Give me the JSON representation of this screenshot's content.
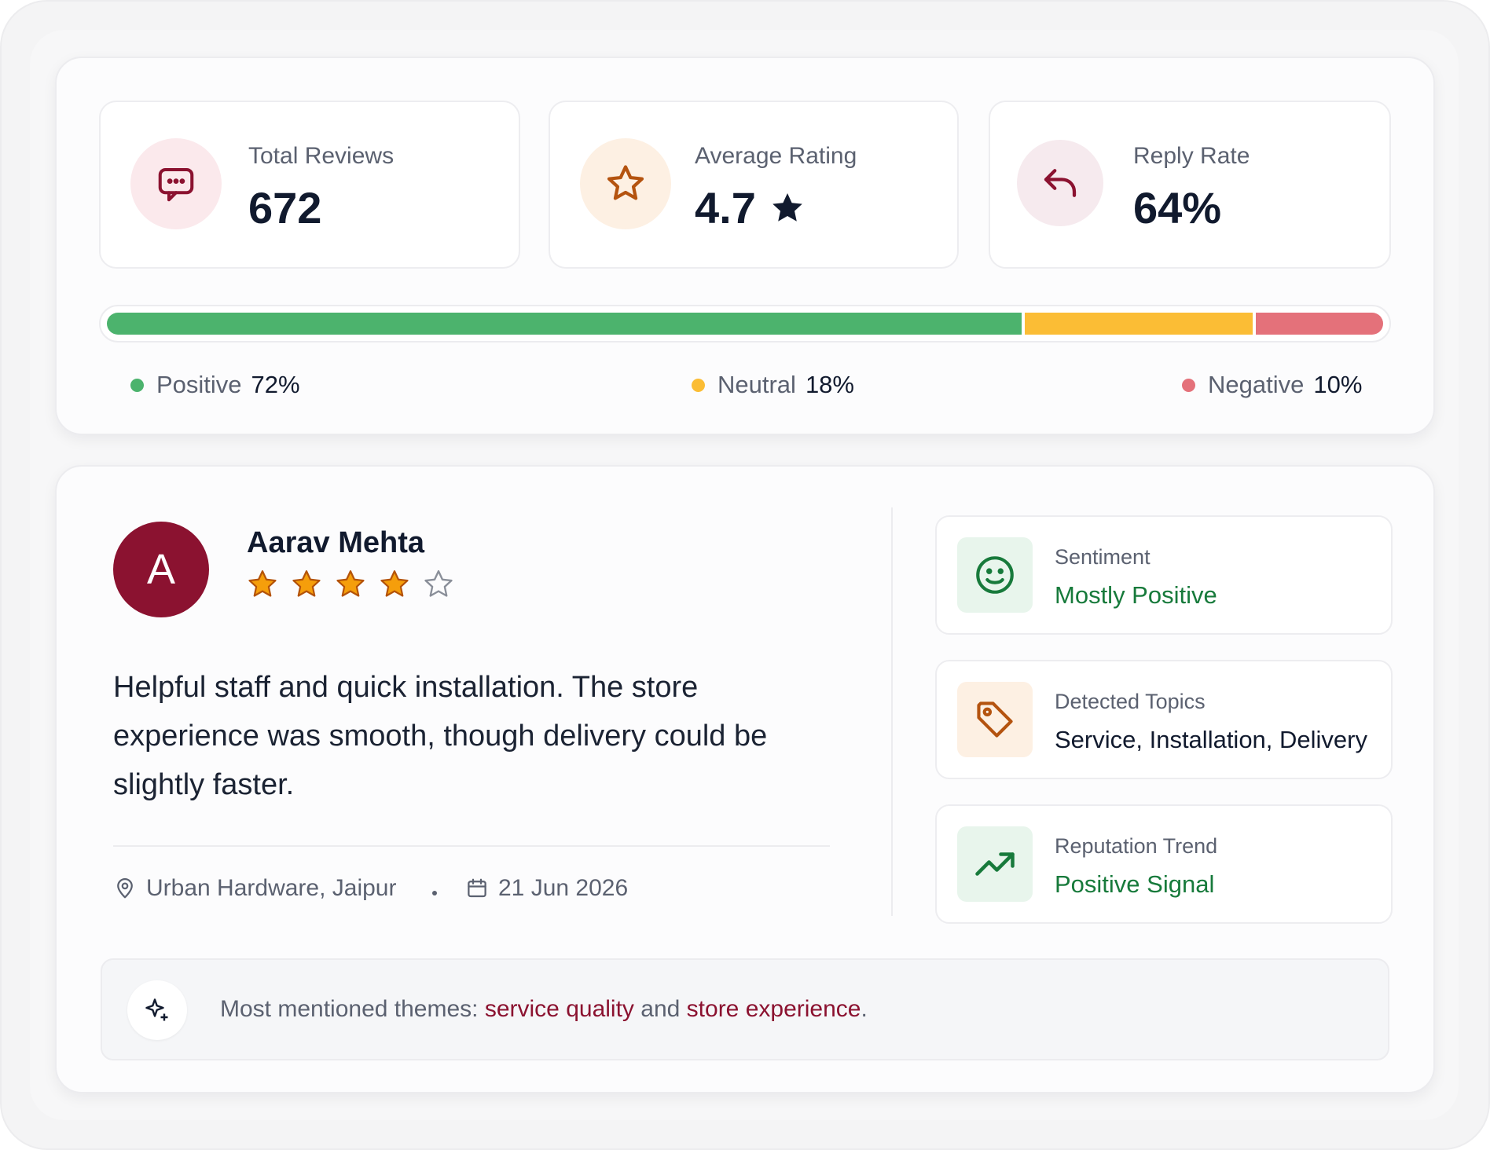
{
  "stats": [
    {
      "label": "Total Reviews",
      "value": "672",
      "icon": "chat-bubble-icon",
      "icon_bg": "#fbe9ec",
      "icon_color": "#8b1230"
    },
    {
      "label": "Average Rating",
      "value": "4.7",
      "icon": "star-icon",
      "icon_bg": "#fdf0e3",
      "icon_color": "#b4530f"
    },
    {
      "label": "Reply Rate",
      "value": "64%",
      "icon": "reply-arrow-icon",
      "icon_bg": "#f6eaee",
      "icon_color": "#8b1230"
    }
  ],
  "sentiment_breakdown": [
    {
      "label": "Positive",
      "pct_text": "72%",
      "fraction": 0.72,
      "color": "#4cb36d"
    },
    {
      "label": "Neutral",
      "pct_text": "18%",
      "fraction": 0.18,
      "color": "#fbbd35"
    },
    {
      "label": "Negative",
      "pct_text": "10%",
      "fraction": 0.1,
      "color": "#e4717a"
    }
  ],
  "review": {
    "avatar_initial": "A",
    "author": "Aarav Mehta",
    "rating": 4,
    "rating_max": 5,
    "text": "Helpful staff and quick installation. The store experience was smooth, though delivery could be slightly faster.",
    "location": "Urban Hardware, Jaipur",
    "date": "21 Jun 2026"
  },
  "insights": [
    {
      "label": "Sentiment",
      "value": "Mostly Positive",
      "icon": "smiley-icon",
      "icon_bg": "#e8f5ec",
      "icon_color": "#177a3b",
      "value_color": "#177a3b"
    },
    {
      "label": "Detected Topics",
      "value": "Service, Installation, Delivery",
      "icon": "tag-icon",
      "icon_bg": "#fdf0e3",
      "icon_color": "#b4530f",
      "value_color": "#111a2e"
    },
    {
      "label": "Reputation Trend",
      "value": "Positive Signal",
      "icon": "trend-up-icon",
      "icon_bg": "#e8f5ec",
      "icon_color": "#177a3b",
      "value_color": "#177a3b"
    }
  ],
  "themes": {
    "prefix": "Most mentioned themes:",
    "theme_1": "service quality",
    "joiner": "and",
    "theme_2": "store experience",
    "suffix": ".",
    "icon": "sparkle-icon"
  },
  "colors": {
    "brand": "#8b1230",
    "positive": "#177a3b",
    "text": "#111a2e"
  }
}
